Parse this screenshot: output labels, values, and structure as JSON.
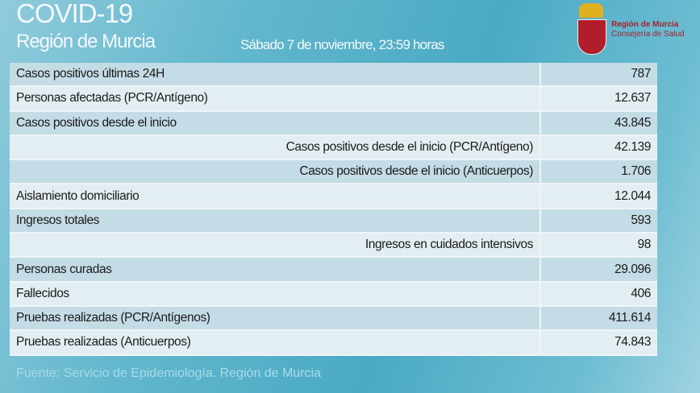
{
  "header": {
    "title": "COVID-19",
    "subtitle": "Región de Murcia",
    "date": "Sábado 7 de noviembre, 23:59 horas",
    "logo": {
      "line1": "Región de Murcia",
      "line2": "Consejería de Salud"
    }
  },
  "rows": [
    {
      "label": "Casos positivos últimas 24H",
      "value": "787"
    },
    {
      "label": "Personas afectadas (PCR/Antígeno)",
      "value": "12.637"
    },
    {
      "label": "Casos positivos desde el inicio",
      "value": "43.845"
    },
    {
      "label": "Casos positivos desde el inicio (PCR/Antígeno)",
      "value": "42.139"
    },
    {
      "label": "Casos positivos desde el inicio (Anticuerpos)",
      "value": "1.706"
    },
    {
      "label": "Aislamiento domiciliario",
      "value": "12.044"
    },
    {
      "label": "Ingresos totales",
      "value": "593"
    },
    {
      "label": "Ingresos en cuidados intensivos",
      "value": "98"
    },
    {
      "label": "Personas curadas",
      "value": "29.096"
    },
    {
      "label": "Fallecidos",
      "value": "406"
    },
    {
      "label": "Pruebas realizadas (PCR/Antígenos)",
      "value": "411.614"
    },
    {
      "label": "Pruebas realizadas (Anticuerpos)",
      "value": "74.843"
    }
  ],
  "footer": {
    "source": "Fuente: Servicio de Epidemiología.  Región de Murcia"
  }
}
